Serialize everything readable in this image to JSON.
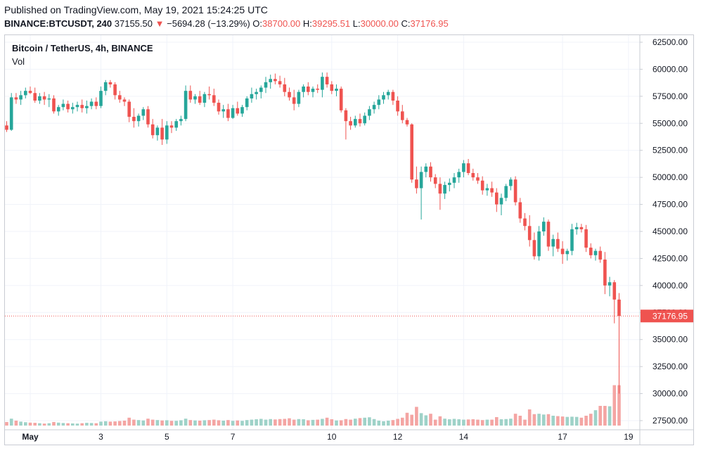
{
  "header": {
    "published": "Published on TradingView.com, May 19, 2021 15:24:25 UTC",
    "symbol": "BINANCE:BTCUSDT, 240",
    "last": "37155.50",
    "change_arrow": "▼",
    "change": "−5694.28 (−13.29%)",
    "o_label": "O:",
    "o_value": "38700.00",
    "h_label": "H:",
    "h_value": "39295.51",
    "l_label": "L:",
    "l_value": "30000.00",
    "c_label": "C:",
    "c_value": "37176.95"
  },
  "legend": {
    "title": "Bitcoin / TetherUS, 4h, BINANCE",
    "vol": "Vol"
  },
  "colors": {
    "up": "#26a69a",
    "down": "#ef5350",
    "up_volume": "#9ed2c8",
    "down_volume": "#f4a5a3",
    "grid": "#f0f3fa",
    "axis_text": "#131722",
    "price_tag": "#ef5350"
  },
  "chart_data": {
    "type": "candlestick",
    "title": "Bitcoin / TetherUS, 4h, BINANCE",
    "ylim": [
      26500,
      63000
    ],
    "y_ticks": [
      "62500.00",
      "60000.00",
      "57500.00",
      "55000.00",
      "52500.00",
      "50000.00",
      "47500.00",
      "45000.00",
      "42500.00",
      "40000.00",
      "37500.00",
      "35000.00",
      "32500.00",
      "30000.00",
      "27500.00"
    ],
    "x_ticks": [
      {
        "label": "May",
        "index": 5
      },
      {
        "label": "3",
        "index": 20
      },
      {
        "label": "5",
        "index": 34
      },
      {
        "label": "7",
        "index": 48
      },
      {
        "label": "10",
        "index": 69
      },
      {
        "label": "12",
        "index": 83
      },
      {
        "label": "14",
        "index": 97
      },
      {
        "label": "17",
        "index": 118
      },
      {
        "label": "19",
        "index": 132
      }
    ],
    "last_price": 37176.95,
    "last_price_label": "37176.95",
    "ohlc": [
      [
        54800,
        55200,
        54200,
        54400
      ],
      [
        54400,
        57800,
        54300,
        57400
      ],
      [
        57400,
        57800,
        56800,
        57200
      ],
      [
        57200,
        58000,
        56700,
        57600
      ],
      [
        57600,
        58300,
        57300,
        58000
      ],
      [
        58000,
        58400,
        57700,
        57800
      ],
      [
        57800,
        58300,
        56900,
        57100
      ],
      [
        57100,
        57800,
        56800,
        57500
      ],
      [
        57500,
        57900,
        56700,
        57200
      ],
      [
        57200,
        57700,
        56500,
        57300
      ],
      [
        57300,
        57600,
        55900,
        56100
      ],
      [
        56100,
        56700,
        55700,
        56500
      ],
      [
        56500,
        57200,
        56200,
        56800
      ],
      [
        56800,
        57100,
        56000,
        56300
      ],
      [
        56300,
        56900,
        55900,
        56500
      ],
      [
        56500,
        57000,
        56100,
        56700
      ],
      [
        56700,
        57200,
        56000,
        56400
      ],
      [
        56400,
        57100,
        55900,
        56600
      ],
      [
        56600,
        57300,
        56300,
        57000
      ],
      [
        57000,
        57400,
        56300,
        56600
      ],
      [
        56600,
        58400,
        56400,
        58000
      ],
      [
        58000,
        59000,
        57600,
        58800
      ],
      [
        58800,
        59000,
        58300,
        58600
      ],
      [
        58600,
        58800,
        57200,
        57600
      ],
      [
        57600,
        58000,
        56900,
        57200
      ],
      [
        57200,
        57400,
        56600,
        57000
      ],
      [
        57000,
        57200,
        55100,
        55600
      ],
      [
        55600,
        56400,
        54600,
        55200
      ],
      [
        55200,
        55900,
        54700,
        55700
      ],
      [
        55700,
        56500,
        55300,
        56300
      ],
      [
        56300,
        56600,
        54600,
        54900
      ],
      [
        54900,
        55400,
        53600,
        53900
      ],
      [
        53900,
        54800,
        53400,
        54600
      ],
      [
        54600,
        55400,
        53000,
        53500
      ],
      [
        53500,
        55200,
        53100,
        54800
      ],
      [
        54800,
        55200,
        54100,
        54600
      ],
      [
        54600,
        55400,
        54300,
        55200
      ],
      [
        55200,
        55700,
        54800,
        55400
      ],
      [
        55400,
        58500,
        55200,
        58000
      ],
      [
        58000,
        58500,
        56900,
        57200
      ],
      [
        57200,
        57700,
        56800,
        57500
      ],
      [
        57500,
        58000,
        56700,
        56900
      ],
      [
        56900,
        57900,
        56500,
        57700
      ],
      [
        57700,
        58400,
        57200,
        57600
      ],
      [
        57600,
        58200,
        56600,
        56900
      ],
      [
        56900,
        57200,
        55800,
        56100
      ],
      [
        56100,
        56700,
        55500,
        56300
      ],
      [
        56300,
        56800,
        55200,
        55500
      ],
      [
        55500,
        56700,
        55400,
        56400
      ],
      [
        56400,
        57000,
        55700,
        55900
      ],
      [
        55900,
        56700,
        55600,
        56500
      ],
      [
        56500,
        57500,
        56200,
        57300
      ],
      [
        57300,
        58300,
        56900,
        57700
      ],
      [
        57700,
        58200,
        57200,
        57900
      ],
      [
        57900,
        58500,
        57300,
        58300
      ],
      [
        58300,
        59300,
        57800,
        58800
      ],
      [
        58800,
        59500,
        58200,
        59100
      ],
      [
        59100,
        59600,
        58600,
        58900
      ],
      [
        58900,
        59400,
        58300,
        58600
      ],
      [
        58600,
        59200,
        57500,
        57900
      ],
      [
        57900,
        58300,
        57100,
        57400
      ],
      [
        57400,
        58100,
        56200,
        56800
      ],
      [
        56800,
        58100,
        56500,
        57900
      ],
      [
        57900,
        58600,
        57400,
        58400
      ],
      [
        58400,
        58800,
        57600,
        57900
      ],
      [
        57900,
        58400,
        57400,
        58200
      ],
      [
        58200,
        58600,
        57800,
        58100
      ],
      [
        58100,
        59700,
        57400,
        59300
      ],
      [
        59300,
        59700,
        58300,
        58600
      ],
      [
        58600,
        58900,
        57700,
        58000
      ],
      [
        58000,
        58600,
        57500,
        58200
      ],
      [
        58200,
        58400,
        56000,
        56200
      ],
      [
        56200,
        56400,
        53500,
        55200
      ],
      [
        55200,
        55600,
        54400,
        54800
      ],
      [
        54800,
        55700,
        54600,
        55400
      ],
      [
        55400,
        55900,
        54700,
        55000
      ],
      [
        55000,
        56000,
        54800,
        55700
      ],
      [
        55700,
        56600,
        55300,
        56300
      ],
      [
        56300,
        57000,
        55900,
        56700
      ],
      [
        56700,
        57600,
        56300,
        57200
      ],
      [
        57200,
        57900,
        56800,
        57600
      ],
      [
        57600,
        58100,
        57200,
        57900
      ],
      [
        57900,
        58100,
        56700,
        57100
      ],
      [
        57100,
        57500,
        55700,
        56100
      ],
      [
        56100,
        56700,
        55000,
        55300
      ],
      [
        55300,
        55500,
        54700,
        54900
      ],
      [
        54900,
        55000,
        49500,
        49800
      ],
      [
        49800,
        51000,
        48500,
        49000
      ],
      [
        49000,
        51000,
        46100,
        50500
      ],
      [
        50500,
        51300,
        50000,
        51000
      ],
      [
        51000,
        51400,
        49600,
        50000
      ],
      [
        50000,
        50300,
        49000,
        49400
      ],
      [
        49400,
        50000,
        47000,
        48500
      ],
      [
        48500,
        49600,
        48000,
        49300
      ],
      [
        49300,
        49900,
        48700,
        49500
      ],
      [
        49500,
        50400,
        49000,
        50000
      ],
      [
        50000,
        50800,
        49500,
        50500
      ],
      [
        50500,
        51600,
        50000,
        51300
      ],
      [
        51300,
        51700,
        50200,
        50400
      ],
      [
        50400,
        50800,
        49700,
        50000
      ],
      [
        50000,
        50400,
        49400,
        49700
      ],
      [
        49700,
        50100,
        48400,
        48800
      ],
      [
        48800,
        49400,
        48300,
        49000
      ],
      [
        49000,
        49600,
        48200,
        48600
      ],
      [
        48600,
        49000,
        46800,
        47500
      ],
      [
        47500,
        48500,
        46500,
        48100
      ],
      [
        48100,
        49400,
        47800,
        49200
      ],
      [
        49200,
        50000,
        48800,
        49800
      ],
      [
        49800,
        50100,
        47400,
        47700
      ],
      [
        47700,
        48100,
        45800,
        46200
      ],
      [
        46200,
        46700,
        45100,
        45500
      ],
      [
        45500,
        46500,
        43600,
        44200
      ],
      [
        44200,
        44900,
        42400,
        42700
      ],
      [
        42700,
        45500,
        42300,
        45000
      ],
      [
        45000,
        46300,
        44600,
        45900
      ],
      [
        45900,
        46100,
        43200,
        43600
      ],
      [
        43600,
        44700,
        42700,
        44300
      ],
      [
        44300,
        44900,
        43100,
        43400
      ],
      [
        43400,
        44100,
        42000,
        42900
      ],
      [
        42900,
        43400,
        42300,
        43200
      ],
      [
        43200,
        45700,
        42800,
        45200
      ],
      [
        45200,
        45800,
        44700,
        45400
      ],
      [
        45400,
        45700,
        44900,
        45200
      ],
      [
        45200,
        45600,
        43100,
        43500
      ],
      [
        43500,
        43900,
        42500,
        42800
      ],
      [
        42800,
        43400,
        42300,
        43200
      ],
      [
        43200,
        43600,
        42100,
        42400
      ],
      [
        42400,
        43100,
        39200,
        40000
      ],
      [
        40000,
        40800,
        39000,
        40300
      ],
      [
        40300,
        40500,
        36500,
        38700
      ],
      [
        38700,
        39300,
        30000,
        37177
      ]
    ],
    "volume_relative": [
      0.18,
      0.35,
      0.25,
      0.2,
      0.17,
      0.15,
      0.14,
      0.12,
      0.1,
      0.12,
      0.18,
      0.15,
      0.13,
      0.12,
      0.11,
      0.1,
      0.12,
      0.14,
      0.13,
      0.12,
      0.2,
      0.22,
      0.2,
      0.21,
      0.23,
      0.25,
      0.4,
      0.3,
      0.28,
      0.26,
      0.35,
      0.3,
      0.28,
      0.26,
      0.27,
      0.24,
      0.24,
      0.27,
      0.35,
      0.28,
      0.26,
      0.25,
      0.27,
      0.28,
      0.3,
      0.27,
      0.25,
      0.28,
      0.24,
      0.26,
      0.24,
      0.28,
      0.3,
      0.32,
      0.34,
      0.3,
      0.33,
      0.31,
      0.33,
      0.34,
      0.37,
      0.3,
      0.33,
      0.32,
      0.27,
      0.29,
      0.3,
      0.34,
      0.4,
      0.32,
      0.26,
      0.27,
      0.33,
      0.3,
      0.35,
      0.38,
      0.4,
      0.42,
      0.33,
      0.25,
      0.22,
      0.25,
      0.28,
      0.34,
      0.4,
      0.65,
      0.55,
      0.95,
      0.63,
      0.52,
      0.6,
      0.3,
      0.47,
      0.35,
      0.32,
      0.34,
      0.32,
      0.3,
      0.31,
      0.32,
      0.3,
      0.28,
      0.3,
      0.3,
      0.43,
      0.32,
      0.33,
      0.35,
      0.6,
      0.5,
      0.3,
      0.82,
      0.58,
      0.6,
      0.56,
      0.58,
      0.5,
      0.48,
      0.46,
      0.44,
      0.45,
      0.44,
      0.4,
      0.5,
      0.6,
      0.78,
      1.0,
      1.0,
      0.98,
      2.05,
      2.05
    ]
  }
}
